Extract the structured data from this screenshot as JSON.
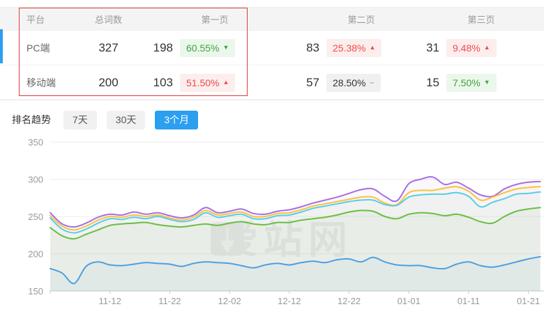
{
  "colors": {
    "accent_blue": "#2b9ff0",
    "up_red": "#ef4b4b",
    "up_red_bg": "#fdeeee",
    "down_green": "#3fa33f",
    "down_green_bg": "#ecf7ec",
    "flat_gray_bg": "#f0f0f0",
    "red_box": "#e03a3a"
  },
  "table": {
    "headers": {
      "platform": "平台",
      "total_words": "总词数",
      "page1": "第一页",
      "page2": "第二页",
      "page3": "第三页"
    },
    "rows": [
      {
        "platform": "PC端",
        "total_words": "327",
        "page1": {
          "count": "198",
          "pct": "60.55%",
          "arrow": "▼"
        },
        "page2": {
          "count": "83",
          "pct": "25.38%",
          "arrow": "▲"
        },
        "page3": {
          "count": "31",
          "pct": "9.48%",
          "arrow": "▲"
        }
      },
      {
        "platform": "移动端",
        "total_words": "200",
        "page1": {
          "count": "103",
          "pct": "51.50%",
          "arrow": "▲"
        },
        "page2": {
          "count": "57",
          "pct": "28.50%",
          "arrow": "−"
        },
        "page3": {
          "count": "15",
          "pct": "7.50%",
          "arrow": "▼"
        }
      }
    ]
  },
  "trend": {
    "title": "排名趋势",
    "tabs": [
      {
        "label": "7天",
        "active": false
      },
      {
        "label": "30天",
        "active": false
      },
      {
        "label": "3个月",
        "active": true
      }
    ]
  },
  "watermark": {
    "text": "爱站网"
  },
  "chart_data": {
    "type": "line",
    "title": "",
    "xlabel": "",
    "ylabel": "",
    "ylim": [
      150,
      350
    ],
    "yticks": [
      150,
      200,
      250,
      300,
      350
    ],
    "grid": true,
    "legend": "none",
    "x_step": 2,
    "x_unit": "days",
    "xticks": [
      {
        "day": 0,
        "label": ""
      },
      {
        "day": 10,
        "label": "11-12"
      },
      {
        "day": 20,
        "label": "11-22"
      },
      {
        "day": 30,
        "label": "12-02"
      },
      {
        "day": 40,
        "label": "12-12"
      },
      {
        "day": 50,
        "label": "12-22"
      },
      {
        "day": 60,
        "label": "01-01"
      },
      {
        "day": 70,
        "label": "01-11"
      },
      {
        "day": 80,
        "label": "01-21"
      }
    ],
    "series": [
      {
        "name": "series-purple",
        "color": "#a66fe0",
        "values": [
          255,
          240,
          236,
          241,
          249,
          253,
          252,
          256,
          253,
          255,
          251,
          248,
          252,
          262,
          255,
          257,
          260,
          254,
          253,
          257,
          259,
          263,
          268,
          272,
          276,
          281,
          286,
          287,
          277,
          271,
          294,
          300,
          303,
          293,
          296,
          288,
          279,
          277,
          287,
          293,
          296,
          297
        ]
      },
      {
        "name": "series-yellow",
        "color": "#f9c23c",
        "values": [
          251,
          237,
          232,
          237,
          245,
          250,
          249,
          252,
          250,
          252,
          248,
          245,
          249,
          258,
          252,
          254,
          256,
          250,
          250,
          254,
          255,
          259,
          264,
          267,
          270,
          273,
          276,
          276,
          268,
          266,
          282,
          285,
          285,
          288,
          290,
          284,
          272,
          276,
          282,
          287,
          289,
          290
        ]
      },
      {
        "name": "series-cyan",
        "color": "#55cfe9",
        "values": [
          248,
          233,
          228,
          233,
          241,
          247,
          246,
          249,
          247,
          250,
          246,
          243,
          246,
          255,
          249,
          251,
          253,
          247,
          247,
          251,
          252,
          256,
          261,
          264,
          267,
          270,
          272,
          272,
          266,
          265,
          276,
          279,
          280,
          280,
          282,
          277,
          263,
          269,
          274,
          280,
          281,
          283
        ]
      },
      {
        "name": "series-green",
        "color": "#68bf40",
        "values": [
          235,
          224,
          220,
          226,
          232,
          238,
          240,
          241,
          242,
          239,
          237,
          236,
          238,
          240,
          238,
          241,
          243,
          240,
          239,
          242,
          242,
          245,
          247,
          249,
          252,
          256,
          258,
          257,
          250,
          247,
          253,
          255,
          254,
          251,
          253,
          249,
          243,
          241,
          250,
          257,
          260,
          262
        ]
      },
      {
        "name": "series-blue",
        "color": "#4b9fe3",
        "values": [
          180,
          174,
          160,
          183,
          189,
          185,
          184,
          186,
          188,
          187,
          186,
          183,
          187,
          189,
          188,
          187,
          184,
          181,
          185,
          187,
          185,
          188,
          190,
          188,
          192,
          193,
          189,
          195,
          189,
          185,
          184,
          184,
          181,
          180,
          186,
          189,
          184,
          182,
          185,
          189,
          193,
          196
        ]
      }
    ]
  }
}
